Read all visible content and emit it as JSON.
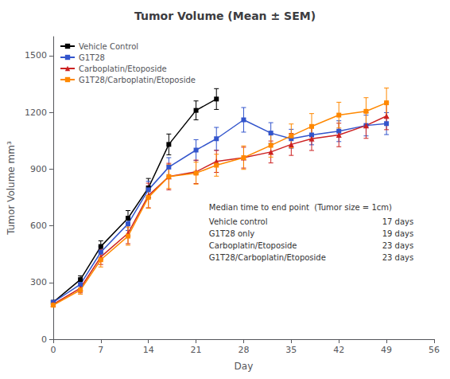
{
  "chart_data": {
    "type": "line",
    "title": "Tumor Volume (Mean ± SEM)",
    "xlabel": "Day",
    "ylabel": "Tumor Volume mm³",
    "xlim": [
      0,
      56
    ],
    "xticks": [
      0,
      7,
      14,
      21,
      28,
      35,
      42,
      49,
      56
    ],
    "ylim": [
      0,
      1600
    ],
    "yticks": [
      0,
      300,
      600,
      900,
      1200,
      1500
    ],
    "grid": false,
    "legend": "upper left",
    "series": [
      {
        "name": "Vehicle Control",
        "color": "black",
        "marker": "square",
        "x": [
          0,
          4,
          7,
          11,
          14,
          17,
          21,
          24
        ],
        "values": [
          195,
          315,
          490,
          640,
          800,
          1030,
          1210,
          1270
        ],
        "sem": [
          10,
          20,
          30,
          40,
          50,
          55,
          50,
          55
        ]
      },
      {
        "name": "G1T28",
        "color": "#3355cc",
        "marker": "square",
        "x": [
          0,
          4,
          7,
          11,
          14,
          17,
          21,
          24,
          28,
          32,
          35,
          38,
          42,
          46,
          49
        ],
        "values": [
          195,
          290,
          460,
          610,
          790,
          910,
          1000,
          1060,
          1160,
          1090,
          1060,
          1080,
          1100,
          1130,
          1140
        ],
        "sem": [
          10,
          20,
          30,
          35,
          45,
          50,
          55,
          60,
          65,
          55,
          50,
          52,
          55,
          55,
          58
        ]
      },
      {
        "name": "Carboplatin/Etoposide",
        "color": "#cc2222",
        "marker": "triangle",
        "x": [
          0,
          4,
          7,
          11,
          14,
          17,
          21,
          24,
          28,
          32,
          35,
          38,
          42,
          46,
          49
        ],
        "values": [
          185,
          270,
          435,
          560,
          760,
          860,
          885,
          940,
          960,
          990,
          1030,
          1060,
          1080,
          1130,
          1180
        ],
        "sem": [
          10,
          25,
          40,
          55,
          65,
          70,
          62,
          58,
          55,
          58,
          58,
          62,
          62,
          68,
          72
        ]
      },
      {
        "name": "G1T28/Carboplatin/Etoposide",
        "color": "#ff8800",
        "marker": "square",
        "x": [
          0,
          4,
          7,
          11,
          14,
          17,
          21,
          24,
          28,
          32,
          35,
          38,
          42,
          46,
          49
        ],
        "values": [
          180,
          260,
          420,
          545,
          750,
          860,
          878,
          920,
          960,
          1025,
          1075,
          1125,
          1185,
          1205,
          1250
        ],
        "sem": [
          10,
          22,
          38,
          48,
          58,
          63,
          58,
          58,
          62,
          62,
          63,
          68,
          68,
          72,
          78
        ]
      }
    ],
    "annotations": {
      "header": "Median time to end point  (Tumor size = 1cm)",
      "rows": [
        [
          "Vehicle control",
          "17 days"
        ],
        [
          "G1T28 only",
          "19 days"
        ],
        [
          "Carboplatin/Etoposide",
          "23 days"
        ],
        [
          "G1T28/Carboplatin/Etoposide",
          "23 days"
        ]
      ]
    }
  }
}
